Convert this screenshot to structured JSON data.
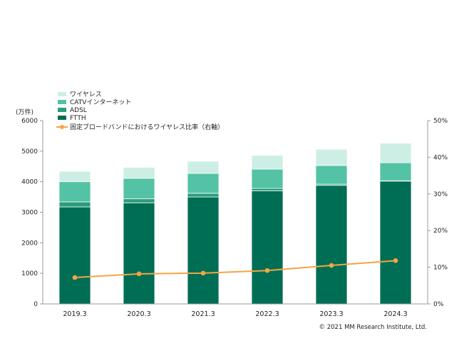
{
  "chart_data": {
    "type": "bar",
    "stacked": true,
    "ylabel": "(万件)",
    "ylim": [
      0,
      6000
    ],
    "yticks": [
      0,
      1000,
      2000,
      3000,
      4000,
      5000,
      6000
    ],
    "y2lim": [
      0,
      50
    ],
    "y2ticks": [
      "0%",
      "10%",
      "20%",
      "30%",
      "40%",
      "50%"
    ],
    "categories": [
      "2019.3",
      "2020.3",
      "2021.3",
      "2022.3",
      "2023.3",
      "2024.3"
    ],
    "series": [
      {
        "name": "FTTH",
        "values": [
          3175,
          3310,
          3500,
          3700,
          3880,
          4020
        ],
        "color": "#006e54"
      },
      {
        "name": "ADSL",
        "values": [
          165,
          130,
          120,
          80,
          40,
          10
        ],
        "color": "#2a9d7a"
      },
      {
        "name": "CATVインターネット",
        "values": [
          660,
          670,
          650,
          630,
          610,
          590
        ],
        "color": "#54c2a4"
      },
      {
        "name": "ワイヤレス",
        "values": [
          340,
          360,
          400,
          450,
          530,
          640
        ],
        "color": "#cdeee4"
      }
    ],
    "line_series": {
      "name": "固定ブロードバンドにおけるワイヤレス比率（右軸）",
      "values": [
        7.2,
        8.2,
        8.4,
        9.1,
        10.5,
        11.8
      ],
      "color": "#f5a441"
    },
    "legend_order": [
      "ワイヤレス",
      "CATVインターネット",
      "ADSL",
      "FTTH",
      "固定ブロードバンドにおけるワイヤレス比率（右軸）"
    ],
    "legend_position": "top-left"
  },
  "footer": {
    "copyright": "© 2021 MM Research Institute, Ltd."
  }
}
